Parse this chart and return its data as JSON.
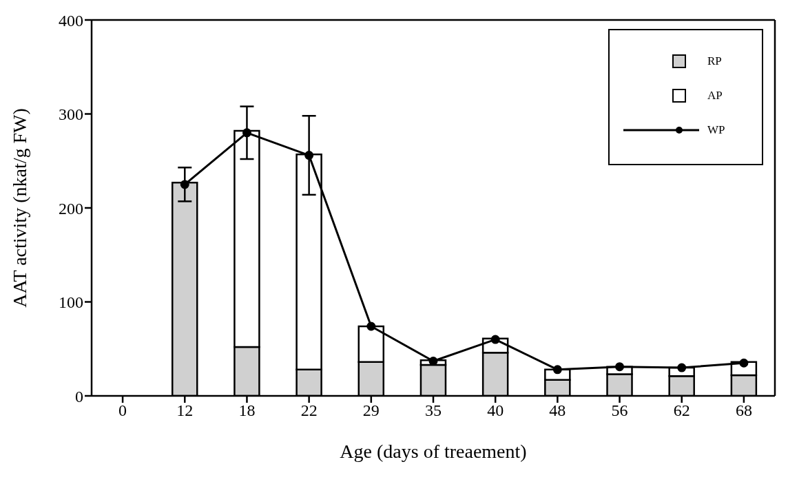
{
  "chart_data": {
    "type": "bar",
    "stacked": true,
    "xlabel": "Age (days of treaement)",
    "ylabel": "AAT activity (nkat/g FW)",
    "categories": [
      "0",
      "12",
      "18",
      "22",
      "29",
      "35",
      "40",
      "48",
      "56",
      "62",
      "68"
    ],
    "series": [
      {
        "name": "RP",
        "color": "#d0d0d0",
        "values": [
          null,
          227,
          52,
          28,
          36,
          33,
          46,
          17,
          23,
          21,
          22
        ]
      },
      {
        "name": "AP",
        "color": "#ffffff",
        "values": [
          null,
          0,
          230,
          229,
          38,
          5,
          15,
          11,
          8,
          9,
          14
        ]
      },
      {
        "name": "WP",
        "type": "line",
        "color": "#000000",
        "marker": "circle",
        "values": [
          null,
          225,
          280,
          256,
          74,
          37,
          60,
          28,
          31,
          30,
          35
        ],
        "errors": [
          null,
          18,
          28,
          42,
          null,
          null,
          null,
          null,
          null,
          null,
          null
        ]
      }
    ],
    "ylim": [
      0,
      400
    ],
    "yticks": [
      0,
      100,
      200,
      300,
      400
    ],
    "grid": false,
    "legend": "top right"
  }
}
